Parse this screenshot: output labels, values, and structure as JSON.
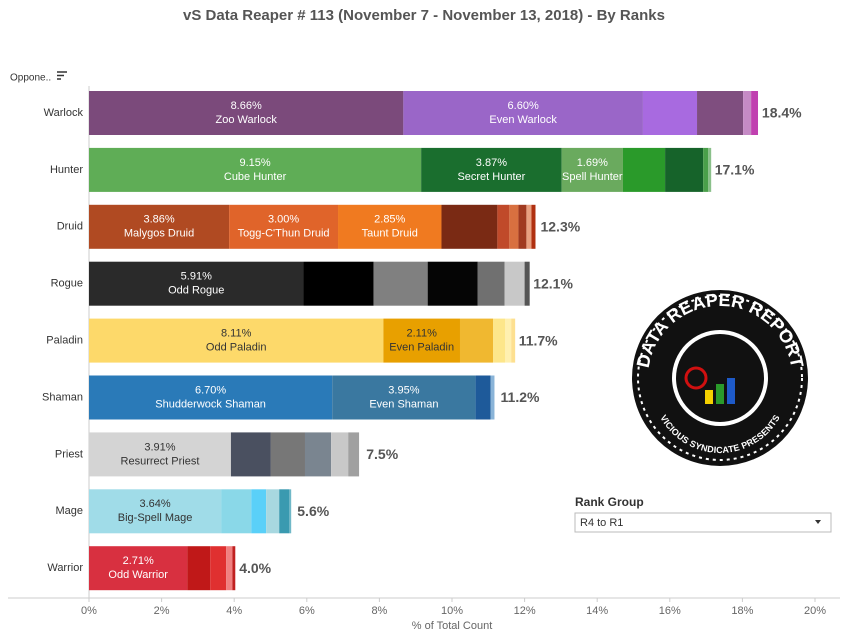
{
  "row_header": "Oppone..",
  "filter": {
    "label": "Rank Group",
    "value": "R4 to R1"
  },
  "logo": {
    "title": "DATA REAPER REPORT",
    "subtitle": "VICIOUS SYNDICATE PRESENTS"
  },
  "chart_data": {
    "type": "bar",
    "orientation": "horizontal",
    "title": "vS Data Reaper #  113 (November 7 - November 13, 2018) - By Ranks",
    "x_label": "% of Total Count",
    "xlim": [
      0,
      20
    ],
    "xticks": [
      {
        "value": 0,
        "label": "0%"
      },
      {
        "value": 2,
        "label": "2%"
      },
      {
        "value": 4,
        "label": "4%"
      },
      {
        "value": 6,
        "label": "6%"
      },
      {
        "value": 8,
        "label": "8%"
      },
      {
        "value": 10,
        "label": "10%"
      },
      {
        "value": 12,
        "label": "12%"
      },
      {
        "value": 14,
        "label": "14%"
      },
      {
        "value": 16,
        "label": "16%"
      },
      {
        "value": 18,
        "label": "18%"
      },
      {
        "value": 20,
        "label": "20%"
      }
    ],
    "categories": [
      "Warlock",
      "Hunter",
      "Druid",
      "Rogue",
      "Paladin",
      "Shaman",
      "Priest",
      "Mage",
      "Warrior"
    ],
    "totals": [
      18.4,
      17.1,
      12.3,
      12.1,
      11.7,
      11.2,
      7.5,
      5.6,
      4.0
    ],
    "total_labels": [
      "18.4%",
      "17.1%",
      "12.3%",
      "12.1%",
      "11.7%",
      "11.2%",
      "7.5%",
      "5.6%",
      "4.0%"
    ],
    "stacks": [
      [
        {
          "name": "Zoo Warlock",
          "value": 8.66,
          "value_label": "8.66%",
          "color": "#7b4a7b"
        },
        {
          "name": "Even Warlock",
          "value": 6.6,
          "value_label": "6.60%",
          "color": "#9a66c8"
        },
        {
          "value": 1.49,
          "color": "#a86ae0"
        },
        {
          "value": 1.27,
          "color": "#7f4e7f"
        },
        {
          "value": 0.22,
          "color": "#c58ac5"
        },
        {
          "value": 0.19,
          "color": "#c040b0"
        }
      ],
      [
        {
          "name": "Cube Hunter",
          "value": 9.15,
          "value_label": "9.15%",
          "color": "#5fad56"
        },
        {
          "name": "Secret Hunter",
          "value": 3.87,
          "value_label": "3.87%",
          "color": "#1a6e2e"
        },
        {
          "name": "Spell Hunter",
          "value": 1.69,
          "value_label": "1.69%",
          "color": "#6aaa5e"
        },
        {
          "value": 1.16,
          "color": "#2a9a2a"
        },
        {
          "value": 1.05,
          "color": "#16632a"
        },
        {
          "value": 0.14,
          "color": "#4aa04a"
        },
        {
          "value": 0.08,
          "color": "#8ac08a"
        }
      ],
      [
        {
          "name": "Malygos Druid",
          "value": 3.86,
          "value_label": "3.86%",
          "color": "#b04a22"
        },
        {
          "name": "Togg-C'Thun Druid",
          "value": 3.0,
          "value_label": "3.00%",
          "color": "#e0642a"
        },
        {
          "name": "Taunt Druid",
          "value": 2.85,
          "value_label": "2.85%",
          "color": "#f07a20"
        },
        {
          "value": 1.54,
          "color": "#7a2a14"
        },
        {
          "value": 0.33,
          "color": "#c04a2a"
        },
        {
          "value": 0.25,
          "color": "#d87040"
        },
        {
          "value": 0.22,
          "color": "#a03a20"
        },
        {
          "value": 0.14,
          "color": "#e8a080"
        },
        {
          "value": 0.11,
          "color": "#b03010"
        }
      ],
      [
        {
          "name": "Odd Rogue",
          "value": 5.91,
          "value_label": "5.91%",
          "color": "#2a2a2a"
        },
        {
          "value": 1.93,
          "color": "#000000"
        },
        {
          "value": 1.49,
          "color": "#808080"
        },
        {
          "value": 1.38,
          "color": "#050505"
        },
        {
          "value": 0.74,
          "color": "#707070"
        },
        {
          "value": 0.55,
          "color": "#c8c8c8"
        },
        {
          "value": 0.14,
          "color": "#555555"
        }
      ],
      [
        {
          "name": "Odd Paladin",
          "value": 8.11,
          "value_label": "8.11%",
          "color": "#fdd96a"
        },
        {
          "name": "Even Paladin",
          "value": 2.11,
          "value_label": "2.11%",
          "color": "#e8a000"
        },
        {
          "value": 0.91,
          "color": "#f0b830"
        },
        {
          "value": 0.33,
          "color": "#fde68a"
        },
        {
          "value": 0.17,
          "color": "#fff0b0"
        },
        {
          "value": 0.11,
          "color": "#fde090"
        }
      ],
      [
        {
          "name": "Shudderwock Shaman",
          "value": 6.7,
          "value_label": "6.70%",
          "color": "#2a7ab8"
        },
        {
          "name": "Even Shaman",
          "value": 3.95,
          "value_label": "3.95%",
          "color": "#3a78a0"
        },
        {
          "value": 0.41,
          "color": "#1e5a9a"
        },
        {
          "value": 0.11,
          "color": "#8ab4d8"
        }
      ],
      [
        {
          "name": "Resurrect Priest",
          "value": 3.91,
          "value_label": "3.91%",
          "color": "#d4d4d4"
        },
        {
          "value": 1.1,
          "color": "#4a5060"
        },
        {
          "value": 0.94,
          "color": "#777777"
        },
        {
          "value": 0.72,
          "color": "#7a8590"
        },
        {
          "value": 0.47,
          "color": "#c8c8c8"
        },
        {
          "value": 0.3,
          "color": "#a0a0a0"
        }
      ],
      [
        {
          "name": "Big-Spell Mage",
          "value": 3.64,
          "value_label": "3.64%",
          "color": "#a0dce8"
        },
        {
          "value": 0.83,
          "color": "#8ad8e8"
        },
        {
          "value": 0.41,
          "color": "#5ad0f8"
        },
        {
          "value": 0.36,
          "color": "#a8d8e0"
        },
        {
          "value": 0.28,
          "color": "#3a9ab0"
        },
        {
          "value": 0.05,
          "color": "#70b8c8"
        }
      ],
      [
        {
          "name": "Odd Warrior",
          "value": 2.71,
          "value_label": "2.71%",
          "color": "#d83040"
        },
        {
          "value": 0.63,
          "color": "#c01818"
        },
        {
          "value": 0.44,
          "color": "#e03030"
        },
        {
          "value": 0.17,
          "color": "#f08080"
        },
        {
          "value": 0.08,
          "color": "#c02020"
        }
      ]
    ]
  }
}
